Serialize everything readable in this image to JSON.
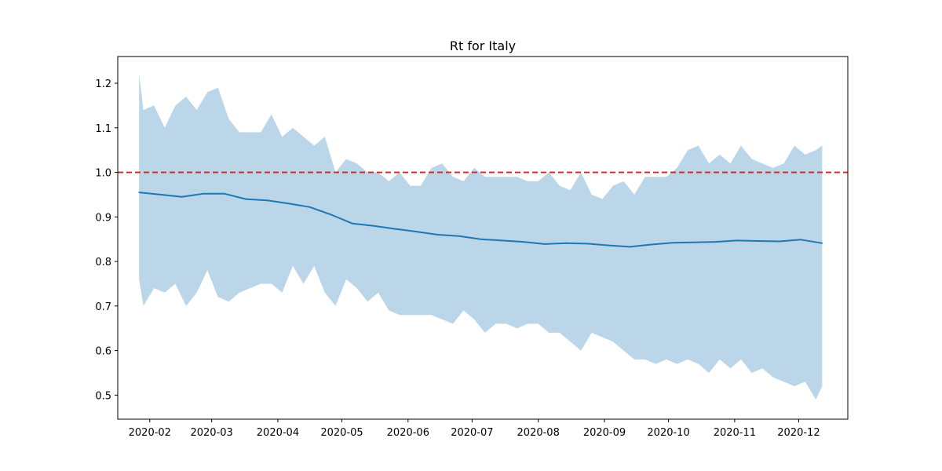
{
  "chart_data": {
    "type": "line",
    "title": "Rt for Italy",
    "xlabel": "",
    "ylabel": "",
    "x_range": [
      "2020-01-17",
      "2020-12-24"
    ],
    "ylim": [
      0.446,
      1.26
    ],
    "x_ticks": [
      "2020-02-01",
      "2020-03-01",
      "2020-04-01",
      "2020-05-01",
      "2020-06-01",
      "2020-07-01",
      "2020-08-01",
      "2020-09-01",
      "2020-10-01",
      "2020-11-01",
      "2020-12-01"
    ],
    "x_tick_labels": [
      "2020-02",
      "2020-03",
      "2020-04",
      "2020-05",
      "2020-06",
      "2020-07",
      "2020-08",
      "2020-09",
      "2020-10",
      "2020-11",
      "2020-12"
    ],
    "y_ticks": [
      0.5,
      0.6,
      0.7,
      0.8,
      0.9,
      1.0,
      1.1,
      1.2
    ],
    "y_tick_labels": [
      "0.5",
      "0.6",
      "0.7",
      "0.8",
      "0.9",
      "1.0",
      "1.1",
      "1.2"
    ],
    "grid": false,
    "reference_line": {
      "y": 1.0,
      "color": "#e41a1c",
      "style": "dashed"
    },
    "series": [
      {
        "type": "line",
        "color": "#1f77b4",
        "x": [
          "2020-01-27",
          "2020-02-06",
          "2020-02-16",
          "2020-02-26",
          "2020-03-07",
          "2020-03-17",
          "2020-03-27",
          "2020-04-06",
          "2020-04-16",
          "2020-04-26",
          "2020-05-06",
          "2020-05-16",
          "2020-05-26",
          "2020-06-05",
          "2020-06-15",
          "2020-06-25",
          "2020-07-05",
          "2020-07-15",
          "2020-07-25",
          "2020-08-04",
          "2020-08-14",
          "2020-08-24",
          "2020-09-03",
          "2020-09-13",
          "2020-09-23",
          "2020-10-03",
          "2020-10-13",
          "2020-10-23",
          "2020-11-02",
          "2020-11-12",
          "2020-11-22",
          "2020-12-02",
          "2020-12-12"
        ],
        "y": [
          0.955,
          0.95,
          0.945,
          0.952,
          0.952,
          0.94,
          0.937,
          0.93,
          0.922,
          0.905,
          0.885,
          0.88,
          0.873,
          0.867,
          0.86,
          0.857,
          0.85,
          0.847,
          0.844,
          0.839,
          0.841,
          0.84,
          0.836,
          0.833,
          0.838,
          0.842,
          0.843,
          0.844,
          0.847,
          0.846,
          0.845,
          0.849,
          0.841
        ]
      },
      {
        "type": "band",
        "color": "#1f77b4",
        "opacity": 0.3,
        "x": [
          "2020-01-27",
          "2020-01-29",
          "2020-02-03",
          "2020-02-08",
          "2020-02-13",
          "2020-02-18",
          "2020-02-23",
          "2020-02-28",
          "2020-03-04",
          "2020-03-09",
          "2020-03-14",
          "2020-03-19",
          "2020-03-24",
          "2020-03-29",
          "2020-04-03",
          "2020-04-08",
          "2020-04-13",
          "2020-04-18",
          "2020-04-23",
          "2020-04-28",
          "2020-05-03",
          "2020-05-08",
          "2020-05-13",
          "2020-05-18",
          "2020-05-23",
          "2020-05-28",
          "2020-06-02",
          "2020-06-07",
          "2020-06-12",
          "2020-06-17",
          "2020-06-22",
          "2020-06-27",
          "2020-07-02",
          "2020-07-07",
          "2020-07-12",
          "2020-07-17",
          "2020-07-22",
          "2020-07-27",
          "2020-08-01",
          "2020-08-06",
          "2020-08-11",
          "2020-08-16",
          "2020-08-21",
          "2020-08-26",
          "2020-08-31",
          "2020-09-05",
          "2020-09-10",
          "2020-09-15",
          "2020-09-20",
          "2020-09-25",
          "2020-09-30",
          "2020-10-05",
          "2020-10-10",
          "2020-10-15",
          "2020-10-20",
          "2020-10-25",
          "2020-10-30",
          "2020-11-04",
          "2020-11-09",
          "2020-11-14",
          "2020-11-19",
          "2020-11-24",
          "2020-11-29",
          "2020-12-04",
          "2020-12-09",
          "2020-12-12"
        ],
        "upper": [
          1.22,
          1.14,
          1.15,
          1.1,
          1.15,
          1.17,
          1.14,
          1.18,
          1.19,
          1.12,
          1.09,
          1.09,
          1.09,
          1.13,
          1.08,
          1.1,
          1.08,
          1.06,
          1.08,
          1.0,
          1.03,
          1.02,
          1.0,
          1.0,
          0.98,
          1.0,
          0.97,
          0.97,
          1.01,
          1.02,
          0.99,
          0.98,
          1.01,
          0.99,
          0.99,
          0.99,
          0.99,
          0.98,
          0.98,
          1.0,
          0.97,
          0.96,
          1.0,
          0.95,
          0.94,
          0.97,
          0.98,
          0.95,
          0.99,
          0.99,
          0.99,
          1.01,
          1.05,
          1.06,
          1.02,
          1.04,
          1.02,
          1.06,
          1.03,
          1.02,
          1.01,
          1.02,
          1.06,
          1.04,
          1.05,
          1.06
        ],
        "lower": [
          0.76,
          0.7,
          0.74,
          0.73,
          0.75,
          0.7,
          0.73,
          0.78,
          0.72,
          0.71,
          0.73,
          0.74,
          0.75,
          0.75,
          0.73,
          0.79,
          0.75,
          0.79,
          0.73,
          0.7,
          0.76,
          0.74,
          0.71,
          0.73,
          0.69,
          0.68,
          0.68,
          0.68,
          0.68,
          0.67,
          0.66,
          0.69,
          0.67,
          0.64,
          0.66,
          0.66,
          0.65,
          0.66,
          0.66,
          0.64,
          0.64,
          0.62,
          0.6,
          0.64,
          0.63,
          0.62,
          0.6,
          0.58,
          0.58,
          0.57,
          0.58,
          0.57,
          0.58,
          0.57,
          0.55,
          0.58,
          0.56,
          0.58,
          0.55,
          0.56,
          0.54,
          0.53,
          0.52,
          0.53,
          0.49,
          0.52
        ]
      }
    ]
  }
}
